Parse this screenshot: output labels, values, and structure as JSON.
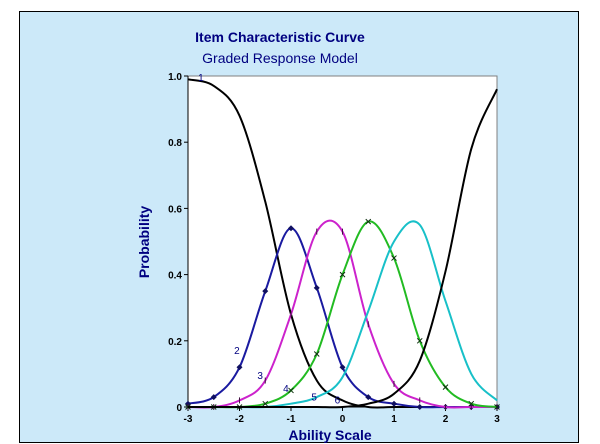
{
  "chart_data": {
    "type": "line",
    "title": "Item Characteristic Curve",
    "subtitle": "Graded Response Model",
    "xlabel": "Ability Scale",
    "ylabel": "Probability",
    "xlim": [
      -3,
      3
    ],
    "ylim": [
      0,
      1
    ],
    "x_ticks": [
      "-3",
      "-2",
      "-1",
      "0",
      "1",
      "2",
      "3"
    ],
    "y_ticks": [
      "0",
      "0.2",
      "0.4",
      "0.6",
      "0.8",
      "1.0"
    ],
    "x": [
      -3,
      -2.5,
      -2,
      -1.5,
      -1,
      -0.5,
      0,
      0.5,
      1,
      1.5,
      2,
      2.5,
      3
    ],
    "series": [
      {
        "label": "1",
        "color": "#000000",
        "marker": "none",
        "values": [
          0.99,
          0.97,
          0.88,
          0.62,
          0.28,
          0.08,
          0.02,
          0,
          0,
          0,
          0,
          0,
          0
        ]
      },
      {
        "label": "2",
        "color": "#1a1aa0",
        "marker": "diamond",
        "values": [
          0.01,
          0.03,
          0.12,
          0.35,
          0.54,
          0.36,
          0.12,
          0.03,
          0.01,
          0,
          0,
          0,
          0
        ]
      },
      {
        "label": "3",
        "color": "#cc22cc",
        "marker": "tick",
        "values": [
          0,
          0,
          0.02,
          0.08,
          0.28,
          0.53,
          0.53,
          0.25,
          0.07,
          0.02,
          0,
          0,
          0
        ]
      },
      {
        "label": "4",
        "color": "#22bb22",
        "marker": "x",
        "values": [
          0,
          0,
          0,
          0.01,
          0.05,
          0.16,
          0.4,
          0.56,
          0.45,
          0.2,
          0.06,
          0.01,
          0
        ]
      },
      {
        "label": "5",
        "color": "#18c0c8",
        "marker": "none",
        "values": [
          0,
          0,
          0,
          0,
          0.01,
          0.03,
          0.09,
          0.29,
          0.5,
          0.55,
          0.32,
          0.1,
          0.02
        ]
      },
      {
        "label": "6",
        "color": "#000000",
        "marker": "none",
        "values": [
          0,
          0,
          0,
          0,
          0,
          0,
          0,
          0.01,
          0.04,
          0.14,
          0.41,
          0.78,
          0.96
        ]
      }
    ]
  }
}
